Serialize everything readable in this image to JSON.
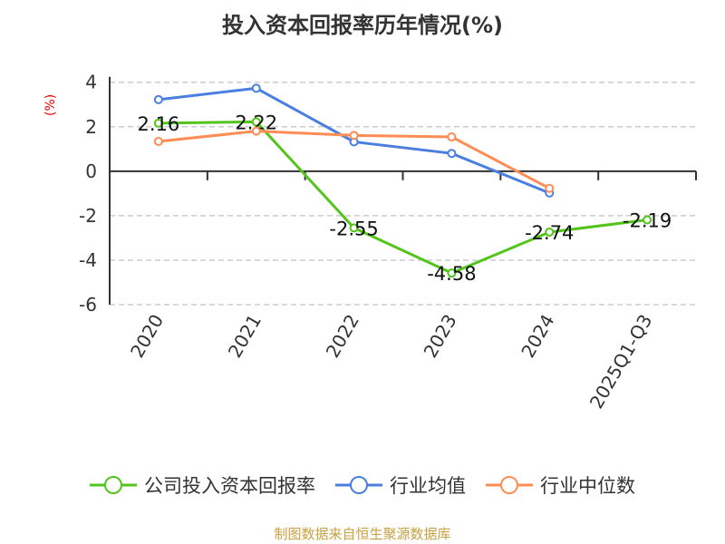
{
  "chart_data": {
    "type": "line",
    "title": "投入资本回报率历年情况(%)",
    "ylabel": "(%)",
    "categories": [
      "2020",
      "2021",
      "2022",
      "2023",
      "2024",
      "2025Q1-Q3"
    ],
    "ylim": [
      -6,
      4
    ],
    "yticks": [
      4,
      2,
      0,
      -2,
      -4,
      -6
    ],
    "grid": true,
    "legend_position": "bottom",
    "series": [
      {
        "name": "公司投入资本回报率",
        "color": "#52c41a",
        "values": [
          2.16,
          2.22,
          -2.55,
          -4.58,
          -2.74,
          -2.19
        ],
        "labels": [
          "2.16",
          "2.22",
          "-2.55",
          "-4.58",
          "-2.74",
          "-2.19"
        ]
      },
      {
        "name": "行业均值",
        "color": "#4a7fe0",
        "values": [
          3.22,
          3.73,
          1.32,
          0.8,
          -0.98,
          null
        ]
      },
      {
        "name": "行业中位数",
        "color": "#ff8c55",
        "values": [
          1.34,
          1.8,
          1.61,
          1.54,
          -0.77,
          null
        ]
      }
    ]
  },
  "source": "制图数据来自恒生聚源数据库"
}
